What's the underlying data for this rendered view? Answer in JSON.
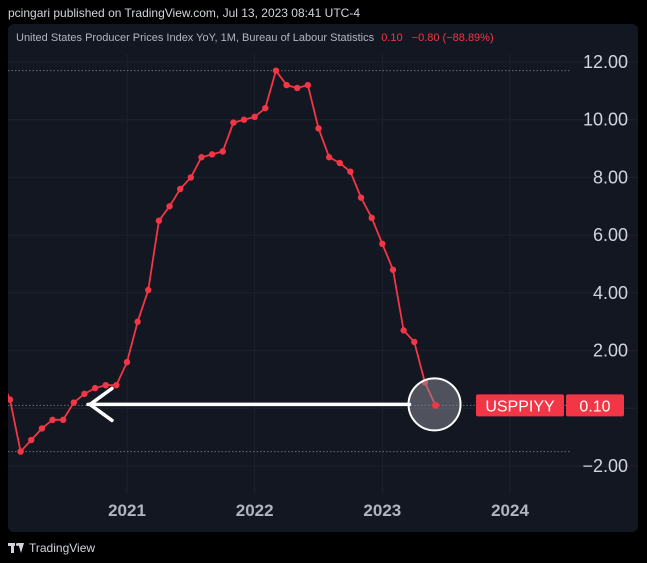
{
  "header": {
    "published": "pcingari published on TradingView.com, Jul 13, 2023 08:41 UTC-4"
  },
  "legend": {
    "title": "United States Producer Prices Index YoY, 1M, Bureau of Labour Statistics",
    "last_value": "0.10",
    "change": "−0.80 (−88.89%)"
  },
  "price_tag": {
    "symbol": "USPPIYY",
    "value": "0.10"
  },
  "footer": {
    "brand": "TradingView"
  },
  "colors": {
    "line": "#f23645",
    "background": "#131722",
    "grid": "#1e222d",
    "text": "#b2b5be"
  },
  "chart_data": {
    "type": "line",
    "series": [
      {
        "x": [
          "2020-01",
          "2020-02",
          "2020-03",
          "2020-04",
          "2020-05",
          "2020-06",
          "2020-07",
          "2020-08",
          "2020-09",
          "2020-10",
          "2020-11",
          "2020-12",
          "2021-01",
          "2021-02",
          "2021-03",
          "2021-04",
          "2021-05",
          "2021-06",
          "2021-07",
          "2021-08",
          "2021-09",
          "2021-10",
          "2021-11",
          "2021-12",
          "2022-01",
          "2022-02",
          "2022-03",
          "2022-04",
          "2022-05",
          "2022-06",
          "2022-07",
          "2022-08",
          "2022-09",
          "2022-10",
          "2022-11",
          "2022-12",
          "2023-01",
          "2023-02",
          "2023-03",
          "2023-04",
          "2023-05",
          "2023-06"
        ],
        "values": [
          1.2,
          0.3,
          -1.5,
          -1.1,
          -0.7,
          -0.4,
          -0.4,
          0.2,
          0.5,
          0.7,
          0.8,
          0.8,
          1.6,
          3.0,
          4.1,
          6.5,
          7.0,
          7.6,
          8.0,
          8.7,
          8.8,
          8.9,
          9.9,
          10.0,
          10.1,
          10.4,
          11.7,
          11.2,
          11.1,
          11.2,
          9.7,
          8.7,
          8.5,
          8.2,
          7.3,
          6.6,
          5.7,
          4.8,
          2.7,
          2.3,
          0.9,
          0.1
        ]
      }
    ],
    "xticks": [
      "2021",
      "2022",
      "2023",
      "2024"
    ],
    "yticks": [
      "12.00",
      "10.00",
      "8.00",
      "6.00",
      "4.00",
      "2.00",
      "−2.00"
    ],
    "ylim": [
      -3.0,
      13.0
    ],
    "xlim": [
      "2019-12",
      "2024-12"
    ],
    "reference_lines": [
      11.7,
      0.1,
      -1.5
    ],
    "annotations": [
      "arrow",
      "highlight-circle"
    ]
  }
}
